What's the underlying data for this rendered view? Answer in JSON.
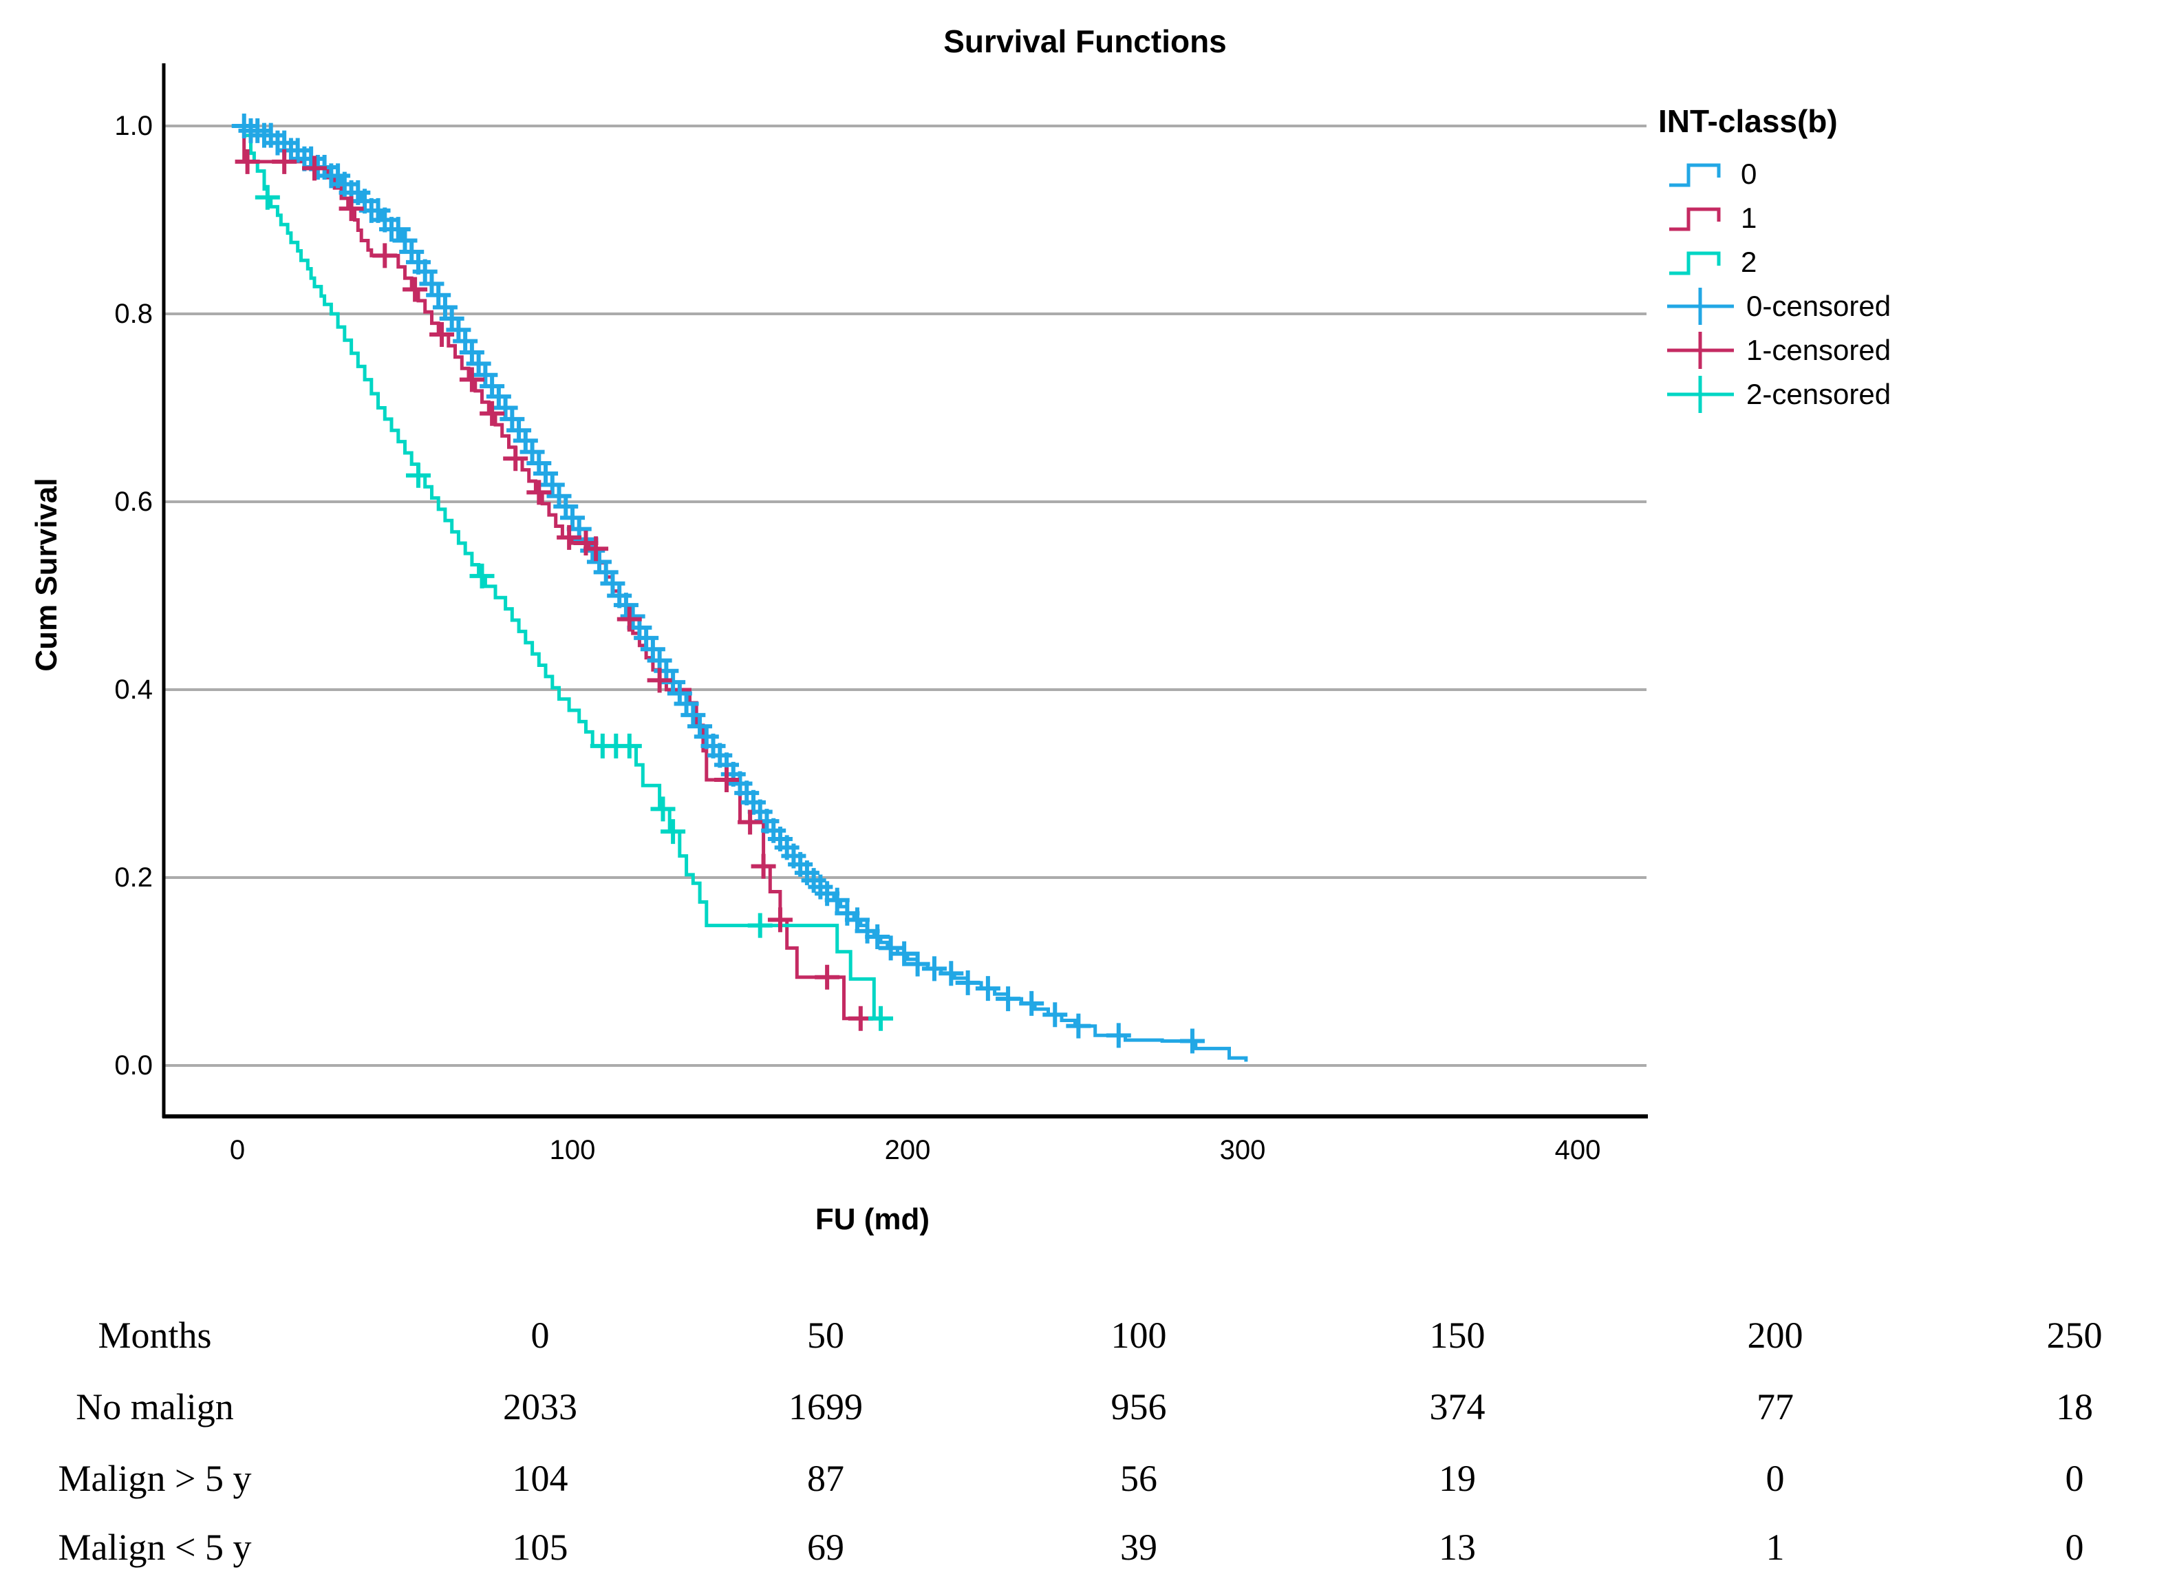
{
  "chart_data": {
    "type": "line",
    "subtype": "kaplan-meier-step",
    "title": "Survival Functions",
    "xlabel": "FU (md)",
    "ylabel": "Cum Survival",
    "xlim": [
      0,
      430
    ],
    "ylim": [
      0,
      1.0
    ],
    "x_tick_labels": [
      "0",
      "100",
      "200",
      "300",
      "400"
    ],
    "y_tick_labels": [
      "1.0",
      "0.8",
      "0.6",
      "0.4",
      "0.2",
      "0.0"
    ],
    "grid": "horizontal",
    "gridline_color": "#ABABAB",
    "axis_color": "#000000",
    "legend": {
      "title": "INT-class(b)",
      "position": "right"
    },
    "series": [
      {
        "label": "0",
        "censored_label": "0-censored",
        "color": "#22A7E5",
        "points": [
          [
            0,
            1.0
          ],
          [
            4,
            0.995
          ],
          [
            8,
            0.99
          ],
          [
            12,
            0.982
          ],
          [
            16,
            0.974
          ],
          [
            20,
            0.965
          ],
          [
            24,
            0.956
          ],
          [
            28,
            0.947
          ],
          [
            31,
            0.938
          ],
          [
            34,
            0.929
          ],
          [
            37,
            0.92
          ],
          [
            40,
            0.91
          ],
          [
            43,
            0.9
          ],
          [
            46,
            0.89
          ],
          [
            49,
            0.878
          ],
          [
            52,
            0.866
          ],
          [
            54,
            0.855
          ],
          [
            56,
            0.845
          ],
          [
            58,
            0.832
          ],
          [
            60,
            0.82
          ],
          [
            62,
            0.807
          ],
          [
            64,
            0.795
          ],
          [
            66,
            0.783
          ],
          [
            68,
            0.771
          ],
          [
            70,
            0.759
          ],
          [
            72,
            0.747
          ],
          [
            74,
            0.735
          ],
          [
            76,
            0.723
          ],
          [
            78,
            0.712
          ],
          [
            80,
            0.7
          ],
          [
            82,
            0.688
          ],
          [
            84,
            0.676
          ],
          [
            86,
            0.665
          ],
          [
            88,
            0.653
          ],
          [
            90,
            0.641
          ],
          [
            92,
            0.63
          ],
          [
            94,
            0.618
          ],
          [
            96,
            0.606
          ],
          [
            98,
            0.595
          ],
          [
            100,
            0.583
          ],
          [
            102,
            0.571
          ],
          [
            104,
            0.56
          ],
          [
            106,
            0.548
          ],
          [
            108,
            0.536
          ],
          [
            110,
            0.525
          ],
          [
            112,
            0.513
          ],
          [
            114,
            0.5
          ],
          [
            116,
            0.49
          ],
          [
            118,
            0.478
          ],
          [
            120,
            0.466
          ],
          [
            122,
            0.455
          ],
          [
            124,
            0.443
          ],
          [
            126,
            0.431
          ],
          [
            128,
            0.42
          ],
          [
            130,
            0.408
          ],
          [
            132,
            0.396
          ],
          [
            134,
            0.385
          ],
          [
            136,
            0.373
          ],
          [
            138,
            0.361
          ],
          [
            140,
            0.35
          ],
          [
            142,
            0.34
          ],
          [
            144,
            0.33
          ],
          [
            146,
            0.32
          ],
          [
            148,
            0.31
          ],
          [
            150,
            0.3
          ],
          [
            152,
            0.29
          ],
          [
            154,
            0.28
          ],
          [
            156,
            0.27
          ],
          [
            158,
            0.26
          ],
          [
            160,
            0.25
          ],
          [
            162,
            0.241
          ],
          [
            164,
            0.232
          ],
          [
            166,
            0.223
          ],
          [
            168,
            0.214
          ],
          [
            170,
            0.205
          ],
          [
            172,
            0.197
          ],
          [
            174,
            0.19
          ],
          [
            176,
            0.183
          ],
          [
            178,
            0.176
          ],
          [
            180,
            0.169
          ],
          [
            182,
            0.162
          ],
          [
            184,
            0.155
          ],
          [
            186,
            0.149
          ],
          [
            188,
            0.143
          ],
          [
            190,
            0.137
          ],
          [
            192,
            0.131
          ],
          [
            194,
            0.125
          ],
          [
            197,
            0.119
          ],
          [
            200,
            0.113
          ],
          [
            203,
            0.108
          ],
          [
            206,
            0.103
          ],
          [
            210,
            0.098
          ],
          [
            214,
            0.093
          ],
          [
            218,
            0.088
          ],
          [
            222,
            0.082
          ],
          [
            226,
            0.076
          ],
          [
            230,
            0.071
          ],
          [
            234,
            0.066
          ],
          [
            238,
            0.06
          ],
          [
            242,
            0.054
          ],
          [
            246,
            0.048
          ],
          [
            250,
            0.042
          ],
          [
            256,
            0.032
          ],
          [
            265,
            0.027
          ],
          [
            276,
            0.026
          ],
          [
            286,
            0.018
          ],
          [
            296,
            0.008
          ],
          [
            301,
            0.004
          ]
        ],
        "censor_times": [
          2,
          4,
          6,
          8,
          10,
          12,
          14,
          16,
          18,
          20,
          22,
          24,
          26,
          28,
          30,
          32,
          34,
          36,
          38,
          40,
          42,
          44,
          46,
          48,
          50,
          52,
          54,
          56,
          58,
          60,
          62,
          64,
          66,
          68,
          70,
          72,
          74,
          76,
          78,
          80,
          82,
          84,
          86,
          88,
          90,
          92,
          94,
          96,
          98,
          100,
          102,
          104,
          106,
          108,
          110,
          112,
          114,
          116,
          118,
          120,
          122,
          124,
          126,
          128,
          130,
          132,
          134,
          136,
          138,
          140,
          142,
          144,
          146,
          148,
          150,
          152,
          154,
          156,
          158,
          160,
          162,
          164,
          166,
          168,
          170,
          172,
          174,
          176,
          179,
          182,
          185,
          188,
          191,
          195,
          199,
          203,
          208,
          213,
          218,
          224,
          230,
          237,
          244,
          251,
          263,
          285
        ]
      },
      {
        "label": "1",
        "censored_label": "1-censored",
        "color": "#C42A62",
        "points": [
          [
            0,
            1.0
          ],
          [
            2,
            0.962
          ],
          [
            20,
            0.955
          ],
          [
            27,
            0.945
          ],
          [
            29,
            0.934
          ],
          [
            31,
            0.923
          ],
          [
            33,
            0.912
          ],
          [
            35,
            0.9
          ],
          [
            36,
            0.889
          ],
          [
            37,
            0.878
          ],
          [
            39,
            0.868
          ],
          [
            40,
            0.862
          ],
          [
            48,
            0.85
          ],
          [
            50,
            0.838
          ],
          [
            52,
            0.826
          ],
          [
            54,
            0.814
          ],
          [
            56,
            0.802
          ],
          [
            58,
            0.79
          ],
          [
            60,
            0.778
          ],
          [
            63,
            0.766
          ],
          [
            65,
            0.754
          ],
          [
            67,
            0.742
          ],
          [
            69,
            0.73
          ],
          [
            71,
            0.718
          ],
          [
            73,
            0.706
          ],
          [
            75,
            0.694
          ],
          [
            77,
            0.682
          ],
          [
            79,
            0.67
          ],
          [
            81,
            0.658
          ],
          [
            83,
            0.646
          ],
          [
            85,
            0.634
          ],
          [
            87,
            0.622
          ],
          [
            89,
            0.61
          ],
          [
            91,
            0.598
          ],
          [
            93,
            0.586
          ],
          [
            95,
            0.574
          ],
          [
            97,
            0.562
          ],
          [
            100,
            0.556
          ],
          [
            105,
            0.55
          ],
          [
            108,
            0.535
          ],
          [
            110,
            0.52
          ],
          [
            112,
            0.505
          ],
          [
            114,
            0.49
          ],
          [
            116,
            0.475
          ],
          [
            118,
            0.46
          ],
          [
            120,
            0.447
          ],
          [
            122,
            0.434
          ],
          [
            124,
            0.421
          ],
          [
            126,
            0.41
          ],
          [
            128,
            0.4
          ],
          [
            135,
            0.386
          ],
          [
            137,
            0.362
          ],
          [
            139,
            0.335
          ],
          [
            140,
            0.304
          ],
          [
            150,
            0.259
          ],
          [
            157,
            0.212
          ],
          [
            159,
            0.185
          ],
          [
            162,
            0.155
          ],
          [
            164,
            0.125
          ],
          [
            167,
            0.094
          ],
          [
            181,
            0.05
          ],
          [
            189,
            0.05
          ]
        ],
        "censor_times": [
          3,
          14,
          23,
          34,
          44,
          53,
          61,
          70,
          76,
          83,
          90,
          99,
          104,
          107,
          117,
          126,
          146,
          153,
          157,
          162,
          176,
          186
        ]
      },
      {
        "label": "2",
        "censored_label": "2-censored",
        "color": "#00D6C4",
        "points": [
          [
            0,
            1.0
          ],
          [
            2,
            0.99
          ],
          [
            4,
            0.971
          ],
          [
            5,
            0.962
          ],
          [
            6,
            0.952
          ],
          [
            8,
            0.933
          ],
          [
            9,
            0.924
          ],
          [
            10,
            0.914
          ],
          [
            12,
            0.905
          ],
          [
            13,
            0.895
          ],
          [
            15,
            0.886
          ],
          [
            16,
            0.876
          ],
          [
            18,
            0.867
          ],
          [
            19,
            0.857
          ],
          [
            21,
            0.848
          ],
          [
            22,
            0.838
          ],
          [
            23,
            0.829
          ],
          [
            25,
            0.819
          ],
          [
            26,
            0.81
          ],
          [
            28,
            0.8
          ],
          [
            30,
            0.786
          ],
          [
            32,
            0.772
          ],
          [
            34,
            0.758
          ],
          [
            36,
            0.744
          ],
          [
            38,
            0.73
          ],
          [
            40,
            0.715
          ],
          [
            42,
            0.7
          ],
          [
            44,
            0.688
          ],
          [
            46,
            0.676
          ],
          [
            48,
            0.664
          ],
          [
            50,
            0.652
          ],
          [
            52,
            0.64
          ],
          [
            54,
            0.628
          ],
          [
            56,
            0.616
          ],
          [
            58,
            0.604
          ],
          [
            60,
            0.592
          ],
          [
            62,
            0.58
          ],
          [
            64,
            0.568
          ],
          [
            66,
            0.556
          ],
          [
            68,
            0.545
          ],
          [
            70,
            0.533
          ],
          [
            72,
            0.521
          ],
          [
            74,
            0.51
          ],
          [
            77,
            0.498
          ],
          [
            80,
            0.486
          ],
          [
            82,
            0.474
          ],
          [
            84,
            0.462
          ],
          [
            86,
            0.45
          ],
          [
            88,
            0.438
          ],
          [
            90,
            0.426
          ],
          [
            92,
            0.414
          ],
          [
            94,
            0.402
          ],
          [
            96,
            0.39
          ],
          [
            99,
            0.378
          ],
          [
            102,
            0.366
          ],
          [
            104,
            0.355
          ],
          [
            106,
            0.34
          ],
          [
            119,
            0.32
          ],
          [
            121,
            0.298
          ],
          [
            126,
            0.273
          ],
          [
            129,
            0.249
          ],
          [
            132,
            0.223
          ],
          [
            134,
            0.203
          ],
          [
            136,
            0.194
          ],
          [
            138,
            0.174
          ],
          [
            140,
            0.149
          ],
          [
            179,
            0.121
          ],
          [
            183,
            0.092
          ],
          [
            190,
            0.05
          ],
          [
            195,
            0.05
          ]
        ],
        "censor_times": [
          9,
          54,
          73,
          109,
          113,
          117,
          127,
          130,
          156,
          192
        ]
      }
    ]
  },
  "risk_table": {
    "header_label": "Months",
    "header_values": [
      0,
      50,
      100,
      150,
      200,
      250
    ],
    "rows": [
      {
        "label": "No malign",
        "values": [
          2033,
          1699,
          956,
          374,
          77,
          18
        ]
      },
      {
        "label": "Malign > 5 y",
        "values": [
          104,
          87,
          56,
          19,
          0,
          0
        ]
      },
      {
        "label": "Malign < 5 y",
        "values": [
          105,
          69,
          39,
          13,
          1,
          0
        ]
      }
    ]
  }
}
